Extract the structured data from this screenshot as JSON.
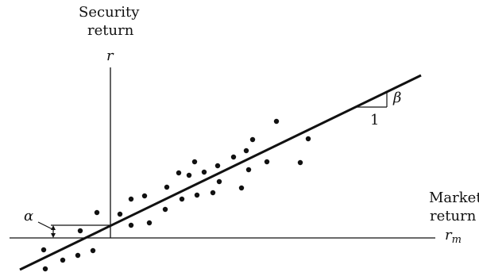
{
  "labels": {
    "security_return_line1": "Security",
    "security_return_line2": "return",
    "y_axis_symbol": "r",
    "market_return_line1": "Market",
    "market_return_line2": "return",
    "x_axis_symbol": "r",
    "x_axis_subscript": "m",
    "alpha": "α",
    "beta": "β",
    "slope_run": "1"
  },
  "colors": {
    "ink": "#111111",
    "background": "#ffffff"
  }
}
